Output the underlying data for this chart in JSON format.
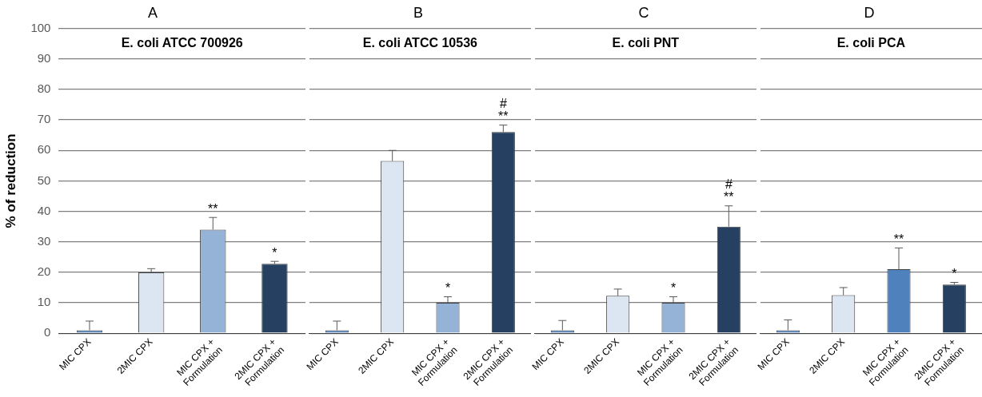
{
  "chart_data": [
    {
      "type": "bar",
      "title": "A",
      "subtitle": "E. coli ATCC 700926",
      "ylabel": "% of reduction",
      "categories": [
        "MIC CPX",
        "2MIC CPX",
        "MIC CPX +\nFormulation",
        "2MIC CPX +\nFormulation"
      ],
      "values": [
        1,
        20,
        34,
        22.8
      ],
      "colors": [
        "#4f81bd",
        "#dce6f2",
        "#95b3d7",
        "#254061"
      ],
      "errors": [
        [
          1,
          4
        ],
        [
          20,
          21.2
        ],
        [
          34,
          38
        ],
        [
          22.8,
          23.6
        ]
      ],
      "annotations": [
        {
          "text": "**",
          "x": "MIC CPX +\nFormulation",
          "y": 38
        },
        {
          "text": "*",
          "x": "2MIC CPX +\nFormulation",
          "y": 23.6
        }
      ],
      "ylim": [
        0,
        100
      ],
      "yticks": [
        0,
        10,
        20,
        30,
        40,
        50,
        60,
        70,
        80,
        90,
        100
      ],
      "grid": "y"
    },
    {
      "type": "bar",
      "title": "B",
      "subtitle": "E. coli ATCC 10536",
      "categories": [
        "MIC CPX",
        "2MIC CPX",
        "MIC CPX +\nFormulation",
        "2MIC CPX +\nFormulation"
      ],
      "values": [
        1,
        56.5,
        10,
        66
      ],
      "colors": [
        "#4f81bd",
        "#dce6f2",
        "#95b3d7",
        "#254061"
      ],
      "errors": [
        [
          1,
          4
        ],
        [
          56.5,
          60
        ],
        [
          10,
          12
        ],
        [
          66,
          68.3
        ]
      ],
      "annotations": [
        {
          "text": "*",
          "x": "MIC CPX +\nFormulation",
          "y": 12
        },
        {
          "text": "**",
          "x": "2MIC CPX +\nFormulation",
          "y": 66
        },
        {
          "text": "#",
          "x": "2MIC CPX +\nFormulation",
          "y": 66
        }
      ],
      "ylim": [
        0,
        100
      ],
      "yticks": [
        0,
        10,
        20,
        30,
        40,
        50,
        60,
        70,
        80,
        90,
        100
      ],
      "grid": "y",
      "tick_labels": "x"
    },
    {
      "type": "bar",
      "title": "C",
      "subtitle": "E. coli PNT",
      "categories": [
        "MIC CPX",
        "2MIC CPX",
        "MIC CPX +\nFormulation",
        "2MIC CPX +\nFormulation"
      ],
      "values": [
        1,
        12.3,
        10,
        35
      ],
      "colors": [
        "#4f81bd",
        "#dce6f2",
        "#95b3d7",
        "#254061"
      ],
      "errors": [
        [
          1,
          4.2
        ],
        [
          12.3,
          14.5
        ],
        [
          10,
          12
        ],
        [
          35,
          41.8
        ]
      ],
      "annotations": [
        {
          "text": "*",
          "x": "MIC CPX +\nFormulation",
          "y": 12
        },
        {
          "text": "**",
          "x": "2MIC CPX +\nFormulation",
          "y": 35
        },
        {
          "text": "#",
          "x": "2MIC CPX +\nFormulation",
          "y": 35
        }
      ],
      "ylim": [
        0,
        100
      ],
      "yticks": [
        0,
        10,
        20,
        30,
        40,
        50,
        60,
        70,
        80,
        90,
        100
      ],
      "grid": "y",
      "tick_labels": "x"
    },
    {
      "type": "bar",
      "title": "D",
      "subtitle": "E. coli PCA",
      "categories": [
        "MIC CPX",
        "2MIC CPX",
        "MIC CPX +\nFormulation",
        "2MIC CPX +\nFormulation"
      ],
      "values": [
        1,
        12.5,
        21,
        16
      ],
      "colors": [
        "#4f81bd",
        "#dce6f2",
        "#4f81bd",
        "#254061"
      ],
      "errors": [
        [
          1,
          4.4
        ],
        [
          12.5,
          15
        ],
        [
          21,
          28
        ],
        [
          16,
          16.7
        ]
      ],
      "annotations": [
        {
          "text": "**",
          "x": "MIC CPX +\nFormulation",
          "y": 28
        },
        {
          "text": "*",
          "x": "2MIC CPX +\nFormulation",
          "y": 16.7
        }
      ],
      "ylim": [
        0,
        100
      ],
      "yticks": [
        0,
        10,
        20,
        30,
        40,
        50,
        60,
        70,
        80,
        90,
        100
      ],
      "grid": "y",
      "tick_labels": "x"
    }
  ]
}
